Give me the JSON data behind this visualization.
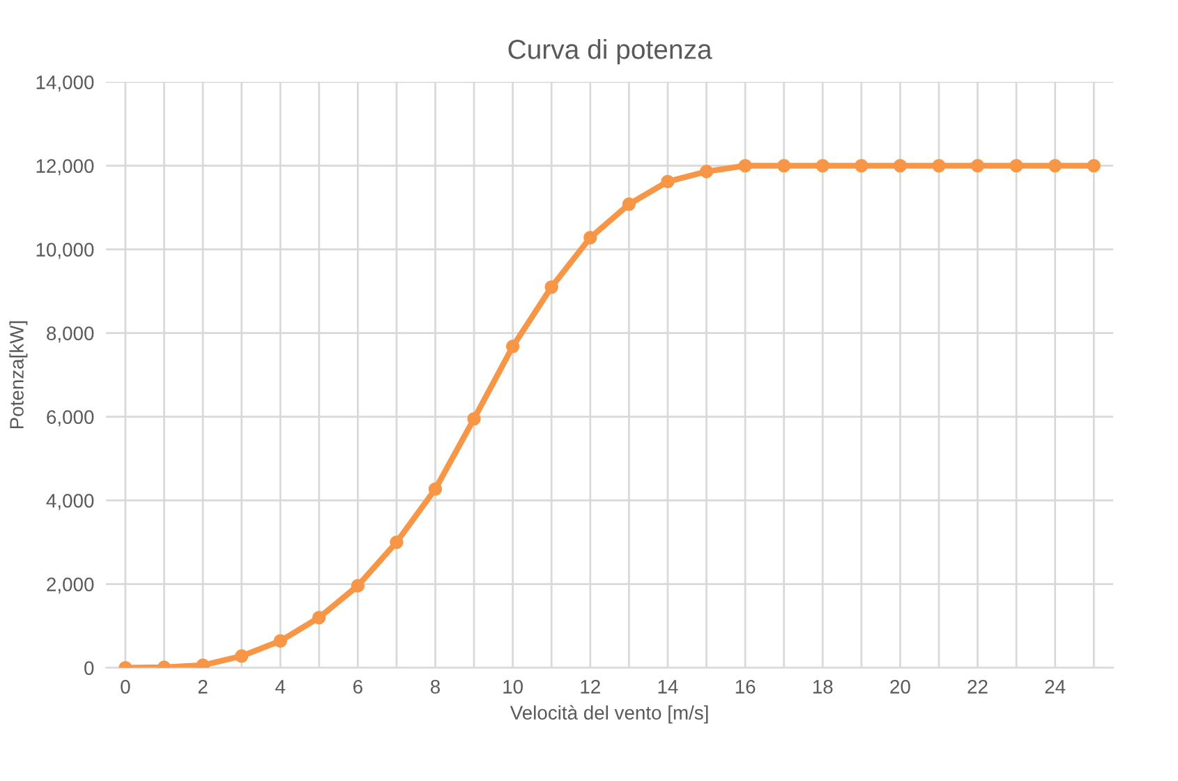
{
  "chart_data": {
    "type": "line",
    "title": "Curva di potenza",
    "xlabel": "Velocità del vento [m/s]",
    "ylabel": "Potenza[kW]",
    "categories": [
      "0",
      null,
      "2",
      null,
      "4",
      null,
      "6",
      null,
      "8",
      null,
      "10",
      null,
      "12",
      null,
      "14",
      null,
      "16",
      null,
      "18",
      null,
      "20",
      null,
      "22",
      null,
      "24",
      null
    ],
    "series": [
      {
        "color": "#f79646",
        "values": [
          0,
          10,
          60,
          280,
          640,
          1200,
          1960,
          3000,
          4270,
          5950,
          7680,
          9100,
          10280,
          11080,
          11620,
          11860,
          12000,
          12000,
          12000,
          12000,
          12000,
          12000,
          12000,
          12000,
          12000,
          12000
        ]
      }
    ],
    "ylim": [
      0,
      14000
    ],
    "yticks": [
      {
        "value": 0,
        "label": "0"
      },
      {
        "value": 2000,
        "label": "2,000"
      },
      {
        "value": 4000,
        "label": "4,000"
      },
      {
        "value": 6000,
        "label": "6,000"
      },
      {
        "value": 8000,
        "label": "8,000"
      },
      {
        "value": 10000,
        "label": "10,000"
      },
      {
        "value": 12000,
        "label": "12,000"
      },
      {
        "value": 14000,
        "label": "14,000"
      }
    ],
    "grid": true,
    "marker": "circle",
    "line_style": "solid"
  }
}
